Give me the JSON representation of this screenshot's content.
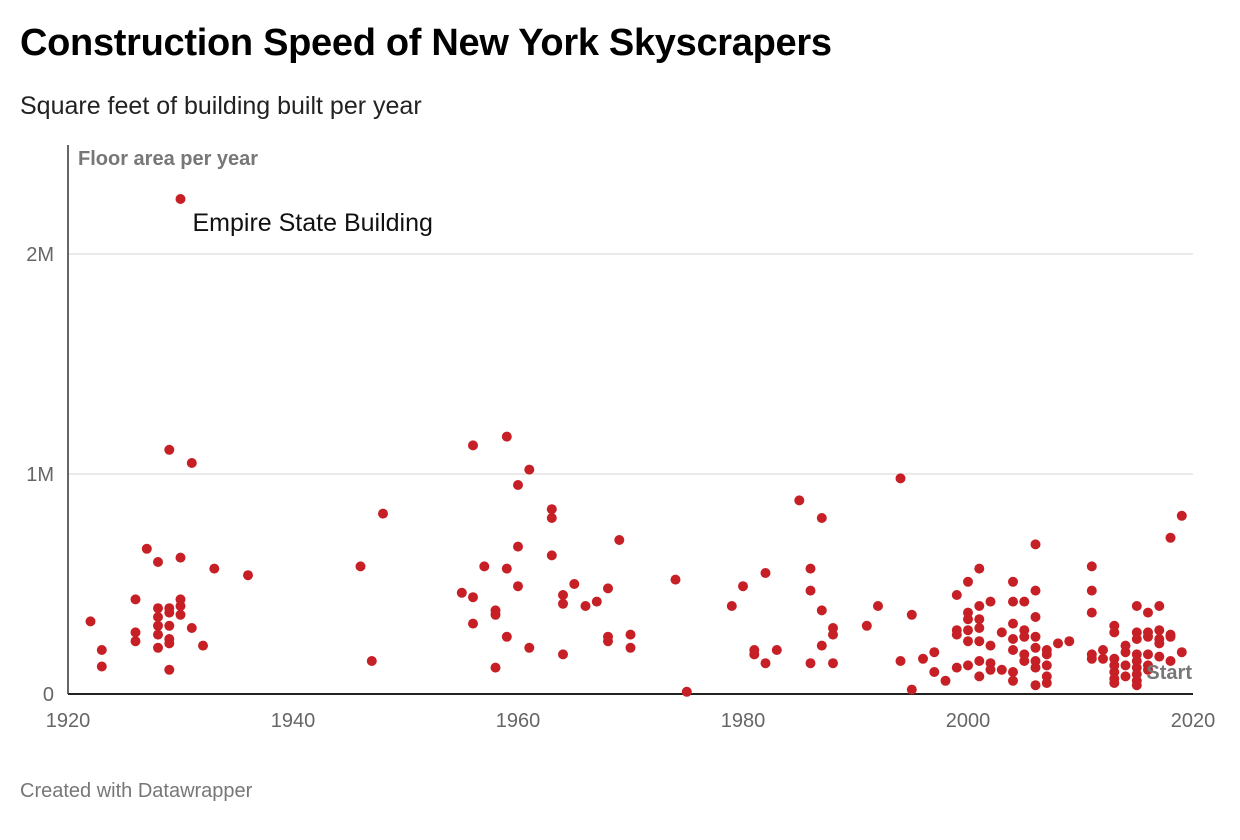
{
  "header": {
    "title": "Construction Speed of New York Skyscrapers",
    "subtitle": "Square feet of building built per year"
  },
  "footer": {
    "credit": "Created with Datawrapper"
  },
  "chart_data": {
    "type": "scatter",
    "title": "Construction Speed of New York Skyscrapers",
    "subtitle": "Square feet of building built per year",
    "xlabel": "",
    "ylabel": "Floor area per year",
    "xlim": [
      1920,
      2020
    ],
    "ylim": [
      0,
      2500000
    ],
    "x_ticks": [
      1920,
      1940,
      1960,
      1980,
      2000,
      2020
    ],
    "x_tick_labels": [
      "1920",
      "1940",
      "1960",
      "1980",
      "2000",
      "2020"
    ],
    "y_ticks": [
      0,
      1000000,
      2000000
    ],
    "y_tick_labels": [
      "0",
      "1M",
      "2M"
    ],
    "grid": "horizontal",
    "point_color": "#c62026",
    "annotations": [
      {
        "text": "Empire State Building",
        "x": 1930,
        "y": 2250000
      },
      {
        "text": "Start",
        "x": 2019,
        "y": 100000
      }
    ],
    "series": [
      {
        "points": [
          [
            1922,
            330000
          ],
          [
            1923,
            200000
          ],
          [
            1923,
            125000
          ],
          [
            1926,
            430000
          ],
          [
            1926,
            280000
          ],
          [
            1926,
            240000
          ],
          [
            1927,
            660000
          ],
          [
            1928,
            600000
          ],
          [
            1928,
            390000
          ],
          [
            1928,
            350000
          ],
          [
            1928,
            310000
          ],
          [
            1928,
            270000
          ],
          [
            1928,
            210000
          ],
          [
            1929,
            1110000
          ],
          [
            1929,
            390000
          ],
          [
            1929,
            370000
          ],
          [
            1929,
            310000
          ],
          [
            1929,
            250000
          ],
          [
            1929,
            230000
          ],
          [
            1929,
            110000
          ],
          [
            1930,
            2250000
          ],
          [
            1930,
            620000
          ],
          [
            1930,
            430000
          ],
          [
            1930,
            400000
          ],
          [
            1930,
            360000
          ],
          [
            1931,
            1050000
          ],
          [
            1931,
            300000
          ],
          [
            1932,
            220000
          ],
          [
            1933,
            570000
          ],
          [
            1936,
            540000
          ],
          [
            1946,
            580000
          ],
          [
            1947,
            150000
          ],
          [
            1948,
            820000
          ],
          [
            1955,
            460000
          ],
          [
            1956,
            1130000
          ],
          [
            1956,
            440000
          ],
          [
            1956,
            320000
          ],
          [
            1957,
            580000
          ],
          [
            1958,
            380000
          ],
          [
            1958,
            360000
          ],
          [
            1958,
            120000
          ],
          [
            1959,
            1170000
          ],
          [
            1959,
            570000
          ],
          [
            1959,
            260000
          ],
          [
            1960,
            950000
          ],
          [
            1960,
            670000
          ],
          [
            1960,
            490000
          ],
          [
            1961,
            1020000
          ],
          [
            1961,
            210000
          ],
          [
            1963,
            840000
          ],
          [
            1963,
            800000
          ],
          [
            1963,
            630000
          ],
          [
            1964,
            450000
          ],
          [
            1964,
            410000
          ],
          [
            1964,
            180000
          ],
          [
            1965,
            500000
          ],
          [
            1966,
            400000
          ],
          [
            1967,
            420000
          ],
          [
            1968,
            480000
          ],
          [
            1968,
            260000
          ],
          [
            1968,
            240000
          ],
          [
            1969,
            700000
          ],
          [
            1970,
            270000
          ],
          [
            1970,
            210000
          ],
          [
            1974,
            520000
          ],
          [
            1975,
            10000
          ],
          [
            1979,
            400000
          ],
          [
            1980,
            490000
          ],
          [
            1981,
            200000
          ],
          [
            1981,
            180000
          ],
          [
            1982,
            550000
          ],
          [
            1982,
            140000
          ],
          [
            1983,
            200000
          ],
          [
            1985,
            880000
          ],
          [
            1986,
            570000
          ],
          [
            1986,
            470000
          ],
          [
            1986,
            140000
          ],
          [
            1987,
            800000
          ],
          [
            1987,
            380000
          ],
          [
            1987,
            220000
          ],
          [
            1988,
            300000
          ],
          [
            1988,
            270000
          ],
          [
            1988,
            140000
          ],
          [
            1991,
            310000
          ],
          [
            1992,
            400000
          ],
          [
            1994,
            980000
          ],
          [
            1994,
            150000
          ],
          [
            1995,
            360000
          ],
          [
            1995,
            20000
          ],
          [
            1996,
            160000
          ],
          [
            1997,
            190000
          ],
          [
            1997,
            100000
          ],
          [
            1998,
            60000
          ],
          [
            1999,
            450000
          ],
          [
            1999,
            290000
          ],
          [
            1999,
            270000
          ],
          [
            1999,
            120000
          ],
          [
            2000,
            510000
          ],
          [
            2000,
            370000
          ],
          [
            2000,
            340000
          ],
          [
            2000,
            290000
          ],
          [
            2000,
            240000
          ],
          [
            2000,
            130000
          ],
          [
            2001,
            570000
          ],
          [
            2001,
            400000
          ],
          [
            2001,
            340000
          ],
          [
            2001,
            300000
          ],
          [
            2001,
            240000
          ],
          [
            2001,
            150000
          ],
          [
            2001,
            80000
          ],
          [
            2002,
            420000
          ],
          [
            2002,
            220000
          ],
          [
            2002,
            140000
          ],
          [
            2002,
            110000
          ],
          [
            2003,
            280000
          ],
          [
            2003,
            110000
          ],
          [
            2004,
            510000
          ],
          [
            2004,
            420000
          ],
          [
            2004,
            320000
          ],
          [
            2004,
            250000
          ],
          [
            2004,
            200000
          ],
          [
            2004,
            100000
          ],
          [
            2004,
            60000
          ],
          [
            2005,
            420000
          ],
          [
            2005,
            290000
          ],
          [
            2005,
            260000
          ],
          [
            2005,
            180000
          ],
          [
            2005,
            150000
          ],
          [
            2006,
            680000
          ],
          [
            2006,
            470000
          ],
          [
            2006,
            350000
          ],
          [
            2006,
            260000
          ],
          [
            2006,
            210000
          ],
          [
            2006,
            150000
          ],
          [
            2006,
            120000
          ],
          [
            2006,
            40000
          ],
          [
            2007,
            200000
          ],
          [
            2007,
            180000
          ],
          [
            2007,
            130000
          ],
          [
            2007,
            80000
          ],
          [
            2007,
            50000
          ],
          [
            2008,
            230000
          ],
          [
            2009,
            240000
          ],
          [
            2011,
            580000
          ],
          [
            2011,
            470000
          ],
          [
            2011,
            370000
          ],
          [
            2011,
            180000
          ],
          [
            2011,
            160000
          ],
          [
            2012,
            200000
          ],
          [
            2012,
            160000
          ],
          [
            2013,
            310000
          ],
          [
            2013,
            280000
          ],
          [
            2013,
            160000
          ],
          [
            2013,
            130000
          ],
          [
            2013,
            100000
          ],
          [
            2013,
            70000
          ],
          [
            2013,
            50000
          ],
          [
            2014,
            220000
          ],
          [
            2014,
            190000
          ],
          [
            2014,
            130000
          ],
          [
            2014,
            80000
          ],
          [
            2015,
            400000
          ],
          [
            2015,
            280000
          ],
          [
            2015,
            250000
          ],
          [
            2015,
            180000
          ],
          [
            2015,
            150000
          ],
          [
            2015,
            120000
          ],
          [
            2015,
            90000
          ],
          [
            2015,
            60000
          ],
          [
            2015,
            40000
          ],
          [
            2016,
            370000
          ],
          [
            2016,
            280000
          ],
          [
            2016,
            260000
          ],
          [
            2016,
            180000
          ],
          [
            2016,
            130000
          ],
          [
            2016,
            110000
          ],
          [
            2017,
            400000
          ],
          [
            2017,
            290000
          ],
          [
            2017,
            250000
          ],
          [
            2017,
            230000
          ],
          [
            2017,
            170000
          ],
          [
            2018,
            710000
          ],
          [
            2018,
            270000
          ],
          [
            2018,
            260000
          ],
          [
            2018,
            150000
          ],
          [
            2019,
            810000
          ],
          [
            2019,
            190000
          ]
        ]
      }
    ]
  }
}
